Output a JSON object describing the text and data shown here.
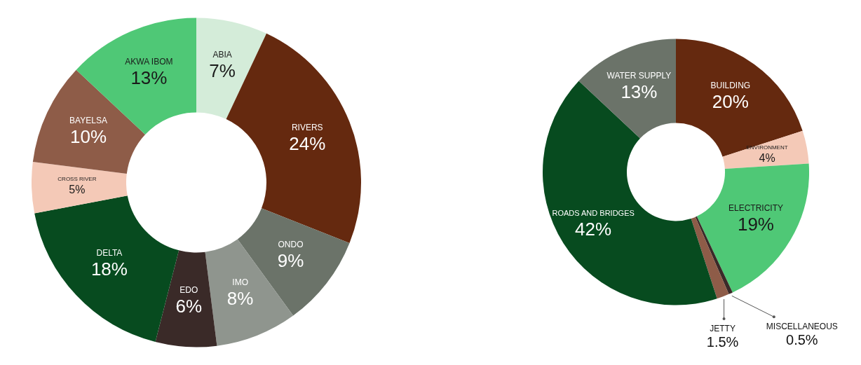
{
  "chart_data": [
    {
      "type": "donut",
      "categories": [
        "ABIA",
        "RIVERS",
        "ONDO",
        "IMO",
        "EDO",
        "DELTA",
        "CROSS RIVER",
        "BAYELSA",
        "AKWA IBOM"
      ],
      "values": [
        7,
        24,
        9,
        8,
        6,
        18,
        5,
        10,
        13
      ],
      "value_labels": [
        "7%",
        "24%",
        "9%",
        "8%",
        "6%",
        "18%",
        "5%",
        "10%",
        "13%"
      ],
      "colors": [
        "#d4ecd9",
        "#65290f",
        "#6b7369",
        "#8f958e",
        "#3a2a28",
        "#074b1f",
        "#f4c9b7",
        "#8e5c48",
        "#4fc876"
      ]
    },
    {
      "type": "donut",
      "categories": [
        "BUILDING",
        "ENVIRONMENT",
        "ELECTRICITY",
        "MISCELLANEOUS",
        "JETTY",
        "ROADS AND BRIDGES",
        "WATER SUPPLY"
      ],
      "values": [
        20,
        4,
        19,
        0.5,
        1.5,
        42,
        13
      ],
      "value_labels": [
        "20%",
        "4%",
        "19%",
        "0.5%",
        "1.5%",
        "42%",
        "13%"
      ],
      "colors": [
        "#65290f",
        "#f4c9b7",
        "#4fc876",
        "#3a2a28",
        "#8e5c48",
        "#074b1f",
        "#6b7369"
      ]
    }
  ]
}
